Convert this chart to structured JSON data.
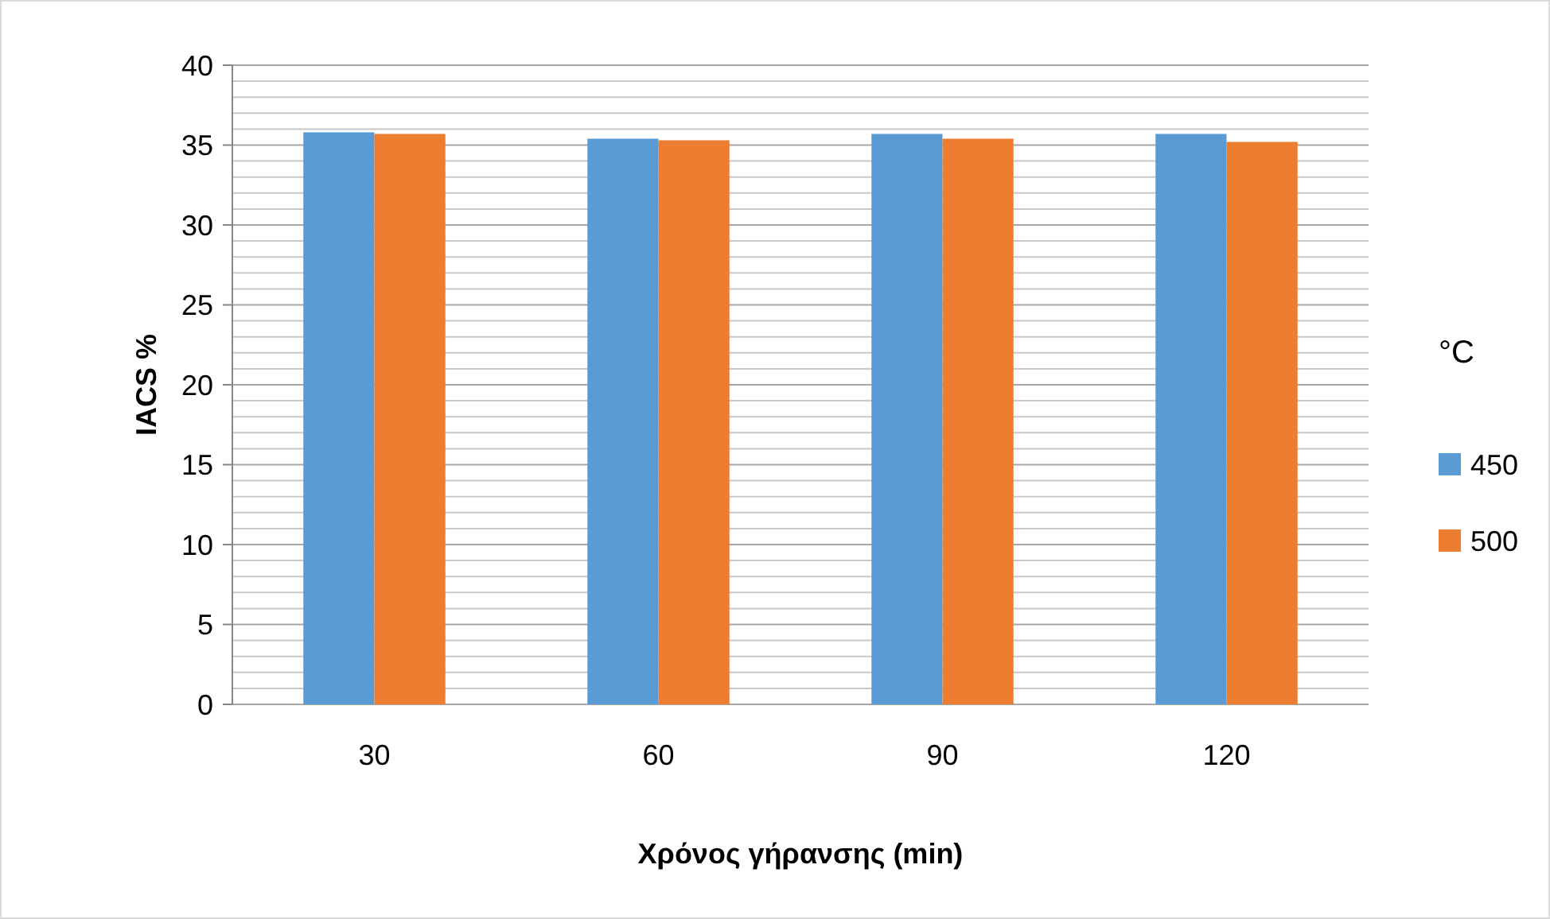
{
  "chart_data": {
    "type": "bar",
    "xlabel": "Χρόνος γήρανσης (min)",
    "ylabel": "IACS %",
    "legend_title": "°C",
    "legend": "right",
    "grid": "y",
    "categories": [
      "30",
      "60",
      "90",
      "120"
    ],
    "series": [
      {
        "name": "450",
        "color": "#5b9bd5",
        "values": [
          35.8,
          35.4,
          35.7,
          35.7
        ]
      },
      {
        "name": "500",
        "color": "#ed7d31",
        "values": [
          35.7,
          35.3,
          35.4,
          35.2
        ]
      }
    ],
    "ylim": [
      0,
      40
    ],
    "yticks": [
      0,
      {
        "value": 1,
        "label": null
      },
      {
        "value": 2,
        "label": null
      },
      {
        "value": 3,
        "label": null
      },
      {
        "value": 4,
        "label": null
      },
      5,
      {
        "value": 6,
        "label": null
      },
      {
        "value": 7,
        "label": null
      },
      {
        "value": 8,
        "label": null
      },
      {
        "value": 9,
        "label": null
      },
      10,
      {
        "value": 11,
        "label": null
      },
      {
        "value": 12,
        "label": null
      },
      {
        "value": 13,
        "label": null
      },
      {
        "value": 14,
        "label": null
      },
      15,
      {
        "value": 16,
        "label": null
      },
      {
        "value": 17,
        "label": null
      },
      {
        "value": 18,
        "label": null
      },
      {
        "value": 19,
        "label": null
      },
      20,
      {
        "value": 21,
        "label": null
      },
      {
        "value": 22,
        "label": null
      },
      {
        "value": 23,
        "label": null
      },
      {
        "value": 24,
        "label": null
      },
      25,
      {
        "value": 26,
        "label": null
      },
      {
        "value": 27,
        "label": null
      },
      {
        "value": 28,
        "label": null
      },
      {
        "value": 29,
        "label": null
      },
      30,
      {
        "value": 31,
        "label": null
      },
      {
        "value": 32,
        "label": null
      },
      {
        "value": 33,
        "label": null
      },
      {
        "value": 34,
        "label": null
      },
      35,
      {
        "value": 36,
        "label": null
      },
      {
        "value": 37,
        "label": null
      },
      {
        "value": 38,
        "label": null
      },
      {
        "value": 39,
        "label": null
      },
      40
    ]
  }
}
